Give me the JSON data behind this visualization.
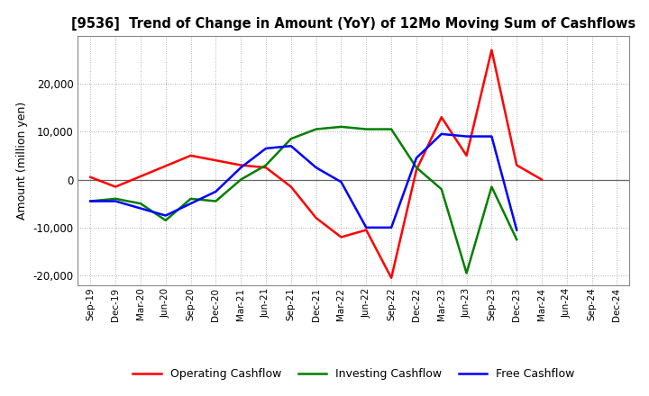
{
  "title": "[9536]  Trend of Change in Amount (YoY) of 12Mo Moving Sum of Cashflows",
  "ylabel": "Amount (million yen)",
  "x_labels": [
    "Sep-19",
    "Dec-19",
    "Mar-20",
    "Jun-20",
    "Sep-20",
    "Dec-20",
    "Mar-21",
    "Jun-21",
    "Sep-21",
    "Dec-21",
    "Mar-22",
    "Jun-22",
    "Sep-22",
    "Dec-22",
    "Mar-23",
    "Jun-23",
    "Sep-23",
    "Dec-23",
    "Mar-24",
    "Jun-24",
    "Sep-24",
    "Dec-24"
  ],
  "operating": [
    500,
    -1500,
    null,
    null,
    5000,
    4000,
    3000,
    2500,
    -1500,
    -8000,
    -12000,
    -10500,
    -20500,
    2000,
    13000,
    5000,
    27000,
    3000,
    0,
    null,
    null,
    null
  ],
  "investing": [
    -4500,
    -4000,
    -5000,
    -8500,
    -4000,
    -4500,
    0,
    3000,
    8500,
    10500,
    11000,
    10500,
    10500,
    2500,
    -2000,
    -19500,
    -1500,
    -12500,
    null,
    null,
    null,
    null
  ],
  "free": [
    -4500,
    -4500,
    -6000,
    -7500,
    -5000,
    -2500,
    2500,
    6500,
    7000,
    2500,
    -500,
    -10000,
    -10000,
    4500,
    9500,
    9000,
    9000,
    -10500,
    null,
    null,
    null,
    null
  ],
  "operating_color": "#ff0000",
  "investing_color": "#008000",
  "free_color": "#0000ff",
  "ylim": [
    -22000,
    30000
  ],
  "yticks": [
    -20000,
    -10000,
    0,
    10000,
    20000
  ],
  "background_color": "#ffffff",
  "grid_color": "#999999"
}
